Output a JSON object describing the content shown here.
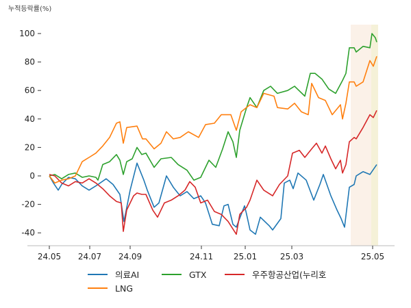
{
  "chart_data": {
    "type": "line",
    "title": "",
    "ylabel": "누적등락률(%)",
    "xlabel": "",
    "x_unit": "trading day index",
    "xlim": [
      0,
      240
    ],
    "ylim": [
      -50,
      107
    ],
    "yticks": [
      -40,
      -20,
      0,
      20,
      40,
      60,
      80,
      100
    ],
    "xticks": [
      {
        "label": "24.05",
        "x": 0
      },
      {
        "label": "24.07",
        "x": 29.5
      },
      {
        "label": "24.09",
        "x": 59
      },
      {
        "label": "24.11",
        "x": 111
      },
      {
        "label": "25.01",
        "x": 143
      },
      {
        "label": "25.03",
        "x": 177
      },
      {
        "label": "25.05",
        "x": 236
      }
    ],
    "highlight_ranges": [
      {
        "from": 220,
        "to": 235,
        "color": "#fbf1e8"
      },
      {
        "from": 235,
        "to": 240,
        "color": "#f5f1d8"
      }
    ],
    "legend_position": "bottom",
    "series": [
      {
        "name": "의료AI",
        "color": "#1f77b4",
        "points": [
          [
            0,
            0
          ],
          [
            3,
            -5
          ],
          [
            6.5,
            -10
          ],
          [
            9,
            -6
          ],
          [
            14,
            -1
          ],
          [
            19,
            -2
          ],
          [
            24,
            -7
          ],
          [
            29,
            -10
          ],
          [
            34,
            -7
          ],
          [
            41.5,
            -2
          ],
          [
            46.5,
            -6
          ],
          [
            51.5,
            -13
          ],
          [
            54,
            -29
          ],
          [
            54.5,
            -32
          ],
          [
            59,
            -10
          ],
          [
            64,
            9
          ],
          [
            69,
            -3
          ],
          [
            71.5,
            -10
          ],
          [
            76.5,
            -22
          ],
          [
            80,
            -19
          ],
          [
            85.5,
            0
          ],
          [
            90.5,
            -8
          ],
          [
            95.5,
            -14
          ],
          [
            100.5,
            -11
          ],
          [
            105.5,
            -16
          ],
          [
            110.5,
            -14
          ],
          [
            114,
            -19
          ],
          [
            119,
            -34
          ],
          [
            124,
            -35
          ],
          [
            127.5,
            -21
          ],
          [
            130.5,
            -20
          ],
          [
            134,
            -34
          ],
          [
            136.5,
            -36
          ],
          [
            142.5,
            -21
          ],
          [
            144,
            -27
          ],
          [
            146.5,
            -38
          ],
          [
            150.5,
            -41
          ],
          [
            154,
            -29
          ],
          [
            160.5,
            -35
          ],
          [
            163,
            -38
          ],
          [
            169,
            -30
          ],
          [
            171.5,
            -5
          ],
          [
            175.5,
            -3
          ],
          [
            178,
            -9
          ],
          [
            181.5,
            2
          ],
          [
            187.5,
            -3
          ],
          [
            193,
            -17
          ],
          [
            197.5,
            -6
          ],
          [
            200,
            1
          ],
          [
            205.5,
            -14
          ],
          [
            210,
            -24
          ],
          [
            213,
            -30
          ],
          [
            215.5,
            -36
          ],
          [
            219,
            -8
          ],
          [
            222.5,
            -6
          ],
          [
            224,
            0
          ],
          [
            229,
            3
          ],
          [
            234,
            1
          ],
          [
            239,
            8
          ]
        ]
      },
      {
        "name": "GTX",
        "color": "#2ca02c",
        "points": [
          [
            0,
            0
          ],
          [
            4,
            1
          ],
          [
            9,
            -2
          ],
          [
            14,
            1
          ],
          [
            19,
            2
          ],
          [
            24,
            -1
          ],
          [
            29,
            0
          ],
          [
            34,
            -1
          ],
          [
            35.5,
            -3
          ],
          [
            39,
            8
          ],
          [
            44,
            10
          ],
          [
            49,
            15
          ],
          [
            51.5,
            11
          ],
          [
            54,
            1
          ],
          [
            56.5,
            10
          ],
          [
            60.5,
            12
          ],
          [
            64,
            20
          ],
          [
            67.5,
            15
          ],
          [
            70.5,
            16
          ],
          [
            76.5,
            6
          ],
          [
            81.5,
            12
          ],
          [
            89,
            13
          ],
          [
            94,
            8
          ],
          [
            100.5,
            4
          ],
          [
            105.5,
            -3
          ],
          [
            110.5,
            -1
          ],
          [
            116.5,
            11
          ],
          [
            121.5,
            6
          ],
          [
            126.5,
            19
          ],
          [
            130.5,
            31
          ],
          [
            134,
            24
          ],
          [
            136.5,
            13
          ],
          [
            139,
            32
          ],
          [
            144,
            48
          ],
          [
            146.5,
            55
          ],
          [
            151.5,
            48
          ],
          [
            156.5,
            60
          ],
          [
            161.5,
            63
          ],
          [
            166.5,
            58
          ],
          [
            174,
            60
          ],
          [
            179,
            63
          ],
          [
            186.5,
            56
          ],
          [
            190.5,
            72
          ],
          [
            194,
            72
          ],
          [
            199,
            68
          ],
          [
            204,
            61
          ],
          [
            209,
            58
          ],
          [
            214,
            67
          ],
          [
            216.5,
            72
          ],
          [
            219,
            90
          ],
          [
            222.5,
            90
          ],
          [
            224,
            87
          ],
          [
            229,
            91
          ],
          [
            234,
            90
          ],
          [
            235.5,
            100
          ],
          [
            238,
            97
          ],
          [
            239,
            94
          ]
        ]
      },
      {
        "name": "우주항공산업(누리호",
        "color": "#d62728",
        "points": [
          [
            0,
            1
          ],
          [
            4,
            0
          ],
          [
            9,
            -5
          ],
          [
            14,
            -7
          ],
          [
            19,
            -4
          ],
          [
            24,
            -5
          ],
          [
            29,
            -2
          ],
          [
            34,
            -5
          ],
          [
            39,
            -9
          ],
          [
            44,
            -14
          ],
          [
            49,
            -18
          ],
          [
            52.5,
            -19
          ],
          [
            54,
            -39
          ],
          [
            56.5,
            -24
          ],
          [
            61.5,
            -14
          ],
          [
            64,
            -12
          ],
          [
            67.5,
            -13
          ],
          [
            70.5,
            -13
          ],
          [
            75.5,
            -24
          ],
          [
            79,
            -29
          ],
          [
            84,
            -19
          ],
          [
            89,
            -17
          ],
          [
            94,
            -14
          ],
          [
            99,
            -10
          ],
          [
            102.5,
            -4
          ],
          [
            106.5,
            -8
          ],
          [
            110.5,
            -19
          ],
          [
            115.5,
            -17
          ],
          [
            120.5,
            -25
          ],
          [
            125.5,
            -27
          ],
          [
            130.5,
            -32
          ],
          [
            136.5,
            -41
          ],
          [
            139,
            -27
          ],
          [
            144,
            -22
          ],
          [
            146.5,
            -17
          ],
          [
            151.5,
            -3
          ],
          [
            156.5,
            -10
          ],
          [
            163,
            -14
          ],
          [
            168,
            -6
          ],
          [
            174,
            0
          ],
          [
            177.5,
            16
          ],
          [
            182.5,
            18
          ],
          [
            186.5,
            13
          ],
          [
            191.5,
            19
          ],
          [
            195,
            23
          ],
          [
            199,
            16
          ],
          [
            201.5,
            21
          ],
          [
            205.5,
            12
          ],
          [
            209,
            5
          ],
          [
            212.5,
            11
          ],
          [
            214,
            2
          ],
          [
            216.5,
            8
          ],
          [
            219,
            24
          ],
          [
            222.5,
            27
          ],
          [
            224,
            26
          ],
          [
            229,
            34
          ],
          [
            234,
            43
          ],
          [
            236.5,
            41
          ],
          [
            239,
            46
          ]
        ]
      },
      {
        "name": "LNG",
        "color": "#ff7f0e",
        "points": [
          [
            0,
            0
          ],
          [
            4,
            -5
          ],
          [
            9,
            -3
          ],
          [
            14,
            -2
          ],
          [
            19,
            0
          ],
          [
            24,
            10
          ],
          [
            29,
            13
          ],
          [
            34,
            16
          ],
          [
            39,
            21
          ],
          [
            44,
            27
          ],
          [
            49,
            37
          ],
          [
            51.5,
            38
          ],
          [
            54,
            23
          ],
          [
            56.5,
            34
          ],
          [
            64,
            35
          ],
          [
            68,
            26
          ],
          [
            70.5,
            26
          ],
          [
            76.5,
            19
          ],
          [
            81.5,
            23
          ],
          [
            85.5,
            31
          ],
          [
            90.5,
            26
          ],
          [
            95.5,
            27
          ],
          [
            101.5,
            31
          ],
          [
            109,
            27
          ],
          [
            114,
            36
          ],
          [
            120.5,
            37
          ],
          [
            125.5,
            43
          ],
          [
            132.5,
            43
          ],
          [
            136.5,
            32
          ],
          [
            140,
            45
          ],
          [
            146.5,
            50
          ],
          [
            151.5,
            48
          ],
          [
            156.5,
            58
          ],
          [
            164,
            56
          ],
          [
            166.5,
            48
          ],
          [
            174,
            47
          ],
          [
            179,
            51
          ],
          [
            184,
            45
          ],
          [
            189,
            43
          ],
          [
            191.5,
            65
          ],
          [
            196.5,
            55
          ],
          [
            201.5,
            53
          ],
          [
            206.5,
            43
          ],
          [
            212.5,
            50
          ],
          [
            214,
            40
          ],
          [
            216.5,
            51
          ],
          [
            219,
            66
          ],
          [
            222.5,
            66
          ],
          [
            224,
            63
          ],
          [
            229,
            66
          ],
          [
            234,
            81
          ],
          [
            236.5,
            77
          ],
          [
            239,
            84
          ]
        ]
      }
    ]
  }
}
